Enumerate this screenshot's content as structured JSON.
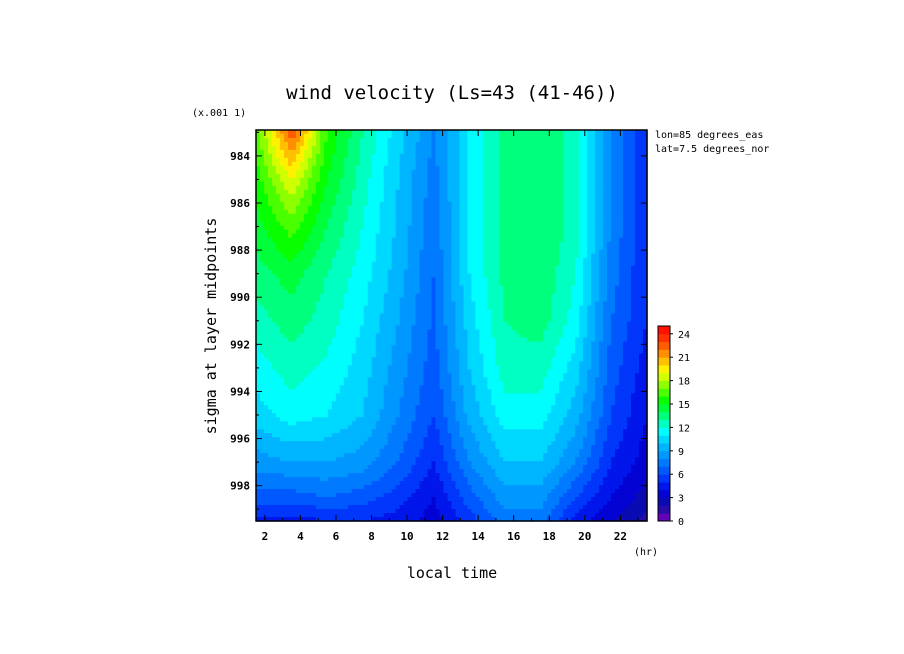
{
  "chart_data": {
    "type": "heatmap",
    "title": "wind velocity (Ls=43 (41-46))",
    "xlabel": "local time",
    "x_unit": "(hr)",
    "ylabel": "sigma at layer midpoints",
    "y_multiplier": "(x.001 1)",
    "annotations": [
      "lon=85 degrees_eas",
      "lat=7.5 degrees_nor"
    ],
    "x_ticks": [
      2,
      4,
      6,
      8,
      10,
      12,
      14,
      16,
      18,
      20,
      22
    ],
    "x_tick_labels": [
      "2",
      "4",
      "6",
      "8",
      "10",
      "12",
      "14",
      "16",
      "18",
      "20",
      "22"
    ],
    "y_ticks": [
      984,
      986,
      988,
      990,
      992,
      994,
      996,
      998
    ],
    "y_tick_labels": [
      "984",
      "986",
      "988",
      "990",
      "992",
      "994",
      "996",
      "998"
    ],
    "xlim": [
      1.5,
      23.5
    ],
    "ylim": [
      999.5,
      982.9
    ],
    "y_inverted": true,
    "grid": false,
    "colorbar": {
      "min": 0,
      "max": 25,
      "ticks": [
        0,
        3,
        6,
        9,
        12,
        15,
        18,
        21,
        24
      ],
      "tick_labels": [
        "0",
        "3",
        "6",
        "9",
        "12",
        "15",
        "18",
        "21",
        "24"
      ],
      "palette": [
        "#8000c0",
        "#1010a0",
        "#0000e0",
        "#0040ff",
        "#0080ff",
        "#00b8ff",
        "#00ffff",
        "#00ff80",
        "#00ff00",
        "#80ff00",
        "#ffff00",
        "#ffa000",
        "#ff4000",
        "#ff0000"
      ]
    },
    "x": [
      1.5,
      3.5,
      5.5,
      7.5,
      9.5,
      11.5,
      13.5,
      15.5,
      17.5,
      19.5,
      21.5,
      23.5
    ],
    "y": [
      982.9,
      985,
      987,
      989,
      991,
      993,
      995,
      997,
      998.5,
      999.5
    ],
    "values": [
      [
        16.5,
        23.0,
        16.0,
        13.0,
        10.5,
        8.0,
        11.0,
        13.5,
        14.0,
        12.5,
        8.0,
        5.0
      ],
      [
        15.5,
        19.0,
        15.0,
        12.5,
        10.0,
        7.5,
        11.0,
        13.5,
        14.0,
        12.5,
        8.0,
        5.0
      ],
      [
        14.5,
        16.5,
        14.0,
        12.0,
        9.8,
        7.3,
        11.0,
        13.5,
        14.0,
        12.5,
        7.8,
        5.0
      ],
      [
        13.5,
        14.5,
        13.0,
        11.5,
        9.5,
        7.0,
        11.0,
        13.3,
        13.8,
        12.0,
        7.5,
        5.0
      ],
      [
        12.5,
        13.5,
        12.5,
        11.0,
        9.0,
        6.8,
        10.5,
        13.0,
        13.5,
        11.5,
        7.0,
        5.0
      ],
      [
        11.5,
        12.5,
        11.8,
        10.5,
        8.5,
        6.5,
        10.0,
        12.5,
        12.5,
        10.5,
        6.5,
        4.5
      ],
      [
        10.5,
        11.5,
        11.0,
        10.0,
        8.0,
        6.0,
        9.3,
        11.5,
        11.5,
        9.5,
        6.0,
        4.0
      ],
      [
        8.5,
        9.0,
        9.0,
        8.5,
        7.0,
        5.0,
        8.0,
        10.0,
        10.0,
        8.0,
        5.0,
        3.5
      ],
      [
        6.5,
        6.5,
        7.0,
        6.5,
        5.5,
        4.0,
        6.5,
        8.5,
        8.5,
        6.0,
        4.0,
        2.5
      ],
      [
        4.5,
        4.5,
        5.0,
        5.0,
        4.5,
        3.5,
        5.5,
        7.5,
        7.5,
        4.5,
        3.0,
        1.5
      ]
    ]
  }
}
